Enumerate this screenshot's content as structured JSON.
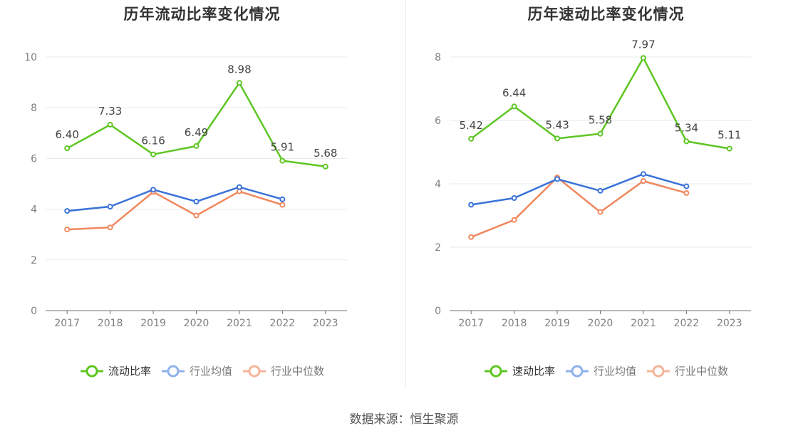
{
  "source": "数据来源：恒生聚源",
  "colors": {
    "grid": "#e6e9ef",
    "axis": "#6e7079",
    "tick": "#7f7f7f",
    "label": "#444444"
  },
  "chart_data": [
    {
      "type": "line",
      "title": "历年流动比率变化情况",
      "categories": [
        "2017",
        "2018",
        "2019",
        "2020",
        "2021",
        "2022",
        "2023"
      ],
      "ylim": [
        0,
        10
      ],
      "yticks": [
        0,
        2,
        4,
        6,
        8,
        10
      ],
      "grid": true,
      "legend_position": "bottom-center",
      "series": [
        {
          "name": "流动比率",
          "color": "#5ec623",
          "show_labels": true,
          "values": [
            6.4,
            7.33,
            6.16,
            6.49,
            8.98,
            5.91,
            5.68
          ],
          "labels": [
            "6.40",
            "7.33",
            "6.16",
            "6.49",
            "8.98",
            "5.91",
            "5.68"
          ]
        },
        {
          "name": "行业均值",
          "color": "#3a72d8",
          "legend_color": "#8fb1ec",
          "show_labels": false,
          "values": [
            3.93,
            4.1,
            4.77,
            4.3,
            4.87,
            4.39,
            null
          ]
        },
        {
          "name": "行业中位数",
          "color": "#f0885e",
          "legend_color": "#f6b49a",
          "show_labels": false,
          "values": [
            3.2,
            3.28,
            4.68,
            3.75,
            4.7,
            4.17,
            null
          ]
        }
      ]
    },
    {
      "type": "line",
      "title": "历年速动比率变化情况",
      "categories": [
        "2017",
        "2018",
        "2019",
        "2020",
        "2021",
        "2022",
        "2023"
      ],
      "ylim": [
        0,
        8
      ],
      "yticks": [
        0,
        2,
        4,
        6,
        8
      ],
      "grid": true,
      "legend_position": "bottom-center",
      "series": [
        {
          "name": "速动比率",
          "color": "#5ec623",
          "show_labels": true,
          "values": [
            5.42,
            6.44,
            5.43,
            5.58,
            7.97,
            5.34,
            5.11
          ],
          "labels": [
            "5.42",
            "6.44",
            "5.43",
            "5.58",
            "7.97",
            "5.34",
            "5.11"
          ]
        },
        {
          "name": "行业均值",
          "color": "#3a72d8",
          "legend_color": "#8fb1ec",
          "show_labels": false,
          "values": [
            3.34,
            3.55,
            4.15,
            3.78,
            4.31,
            3.92,
            null
          ]
        },
        {
          "name": "行业中位数",
          "color": "#f0885e",
          "legend_color": "#f6b49a",
          "show_labels": false,
          "values": [
            2.32,
            2.86,
            4.2,
            3.11,
            4.09,
            3.71,
            null
          ]
        }
      ]
    }
  ]
}
